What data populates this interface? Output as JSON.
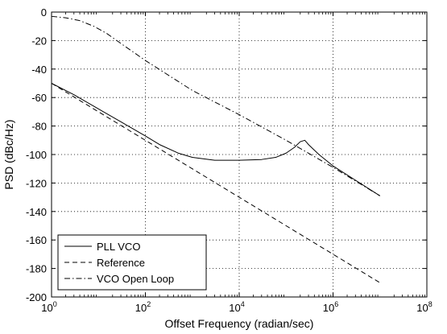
{
  "chart_data": {
    "type": "line",
    "title": "",
    "xlabel": "Offset Frequency (radian/sec)",
    "ylabel": "PSD (dBc/Hz)",
    "xscale": "log",
    "xlim": [
      1,
      100000000
    ],
    "ylim": [
      -200,
      0
    ],
    "grid": true,
    "legend_position": "bottom-left",
    "x_ticks": [
      {
        "base": "10",
        "exp": "0"
      },
      {
        "base": "10",
        "exp": "2"
      },
      {
        "base": "10",
        "exp": "4"
      },
      {
        "base": "10",
        "exp": "6"
      },
      {
        "base": "10",
        "exp": "8"
      }
    ],
    "y_ticks": [
      "0",
      "-20",
      "-40",
      "-60",
      "-80",
      "-100",
      "-120",
      "-140",
      "-160",
      "-180",
      "-200"
    ],
    "series": [
      {
        "name": "PLL VCO",
        "style": "solid",
        "color": "#000000",
        "points": [
          [
            1,
            -50
          ],
          [
            3,
            -58
          ],
          [
            10,
            -68
          ],
          [
            30,
            -77
          ],
          [
            100,
            -87
          ],
          [
            200,
            -93
          ],
          [
            500,
            -99
          ],
          [
            1000,
            -102
          ],
          [
            3000,
            -104
          ],
          [
            10000,
            -104
          ],
          [
            30000,
            -103.5
          ],
          [
            60000,
            -102
          ],
          [
            100000,
            -99
          ],
          [
            150000,
            -95
          ],
          [
            200000,
            -91
          ],
          [
            250000,
            -90
          ],
          [
            300000,
            -93
          ],
          [
            500000,
            -100
          ],
          [
            1000000,
            -108
          ],
          [
            3000000,
            -118
          ],
          [
            10000000,
            -129
          ]
        ]
      },
      {
        "name": "Reference",
        "style": "dashed",
        "color": "#000000",
        "points": [
          [
            1,
            -50
          ],
          [
            10,
            -70
          ],
          [
            100,
            -90
          ],
          [
            1000,
            -110
          ],
          [
            10000,
            -130
          ],
          [
            100000,
            -150
          ],
          [
            1000000,
            -170
          ],
          [
            10000000,
            -190
          ]
        ]
      },
      {
        "name": "VCO Open Loop",
        "style": "dashdot",
        "color": "#000000",
        "points": [
          [
            1,
            -3
          ],
          [
            2,
            -4
          ],
          [
            4,
            -6
          ],
          [
            8,
            -10
          ],
          [
            15,
            -15
          ],
          [
            30,
            -22
          ],
          [
            100,
            -34
          ],
          [
            1000,
            -55
          ],
          [
            10000,
            -72
          ],
          [
            100000,
            -90
          ],
          [
            1000000,
            -109
          ],
          [
            10000000,
            -129
          ]
        ]
      }
    ]
  }
}
